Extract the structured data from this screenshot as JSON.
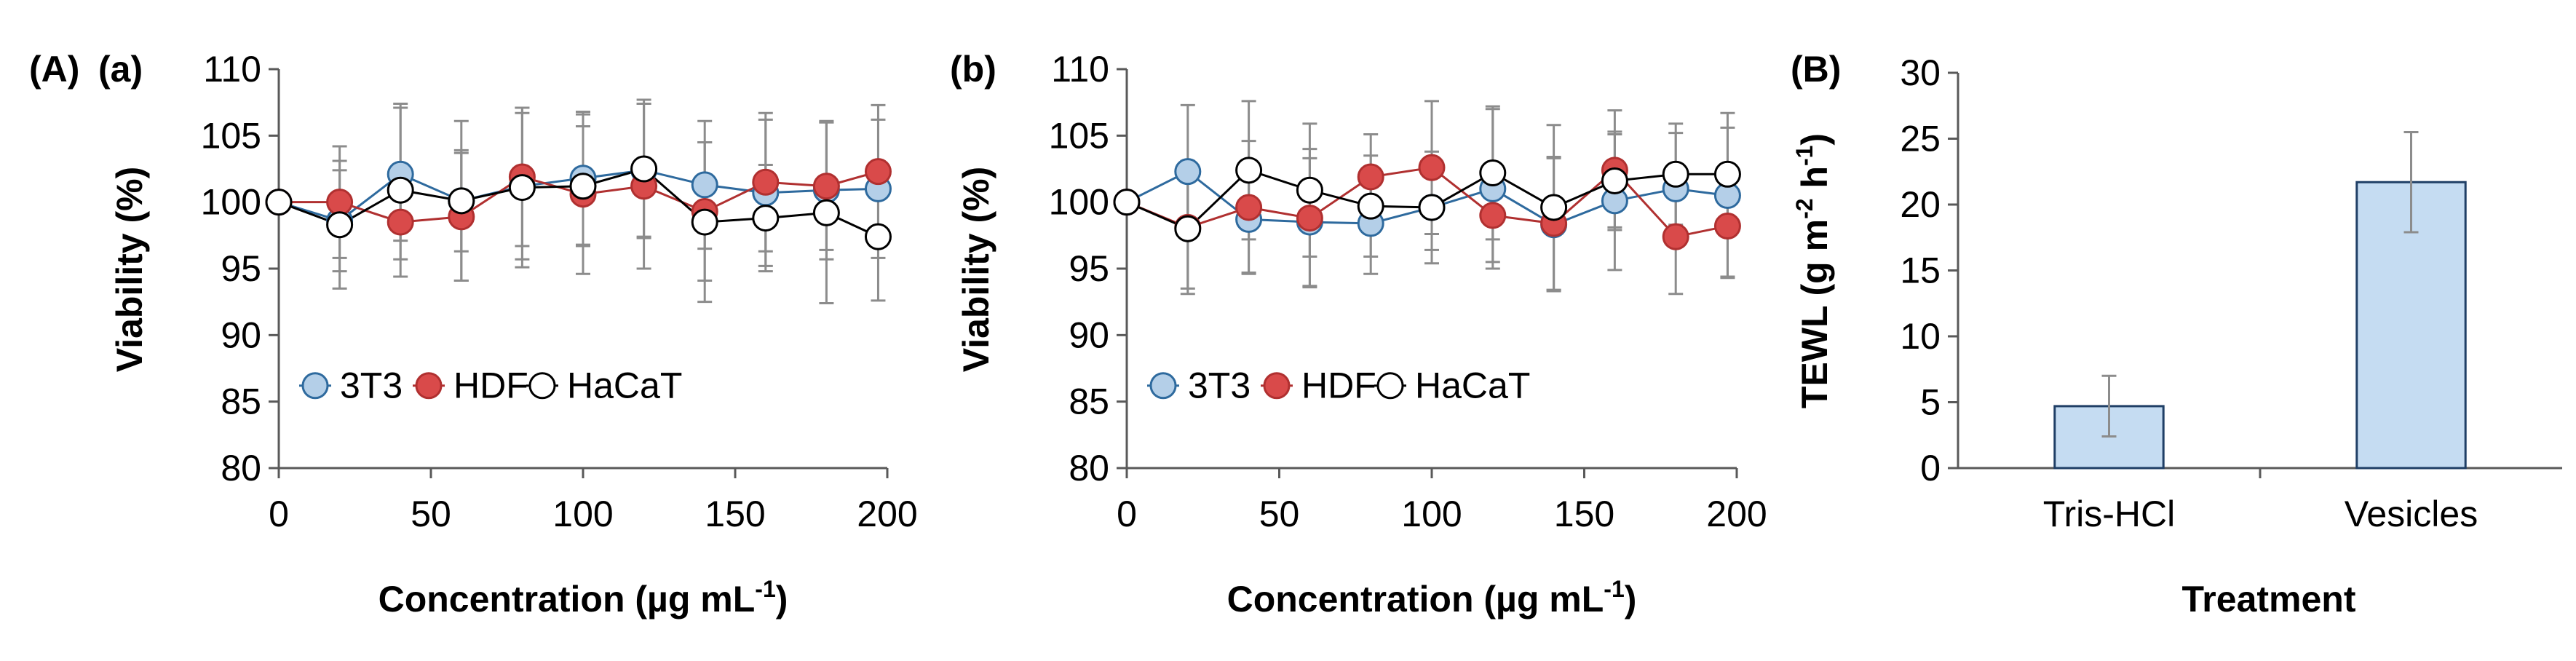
{
  "panel_labels": {
    "A": "(A)",
    "a": "(a)",
    "b": "(b)",
    "B": "(B)"
  },
  "chart_data": [
    {
      "panel": "(a)",
      "type": "line",
      "xlabel": "Concentration (µg mL⁻¹)",
      "xlabel_main": "Concentration (µg mL",
      "xlabel_sup": "-1",
      "xlabel_close": ")",
      "ylabel": "Viability (%)",
      "xlim": [
        0,
        200
      ],
      "ylim": [
        80,
        110
      ],
      "x_ticks": [
        "0",
        "50",
        "100",
        "150",
        "200"
      ],
      "y_ticks": [
        "80",
        "85",
        "90",
        "95",
        "100",
        "105",
        "110"
      ],
      "x_tick_values": [
        0,
        50,
        100,
        150,
        200
      ],
      "y_tick_values": [
        80,
        85,
        90,
        95,
        100,
        105,
        110
      ],
      "legend_position": "bottom",
      "grid": false,
      "x": [
        0,
        20,
        40,
        60,
        80,
        100,
        120,
        140,
        160,
        180,
        197
      ],
      "series": [
        {
          "name": "3T3",
          "color": "#b4cfe8",
          "edge": "#2e6a9e",
          "values": [
            100,
            98.6,
            102.1,
            100.1,
            101.2,
            101.8,
            102.4,
            101.3,
            100.7,
            100.9,
            101.0
          ],
          "errors": [
            0,
            3.8,
            5.0,
            3.8,
            5.5,
            5.0,
            5.0,
            4.8,
            5.5,
            5.2,
            5.2
          ]
        },
        {
          "name": "HDF",
          "color": "#d94a4a",
          "edge": "#b03030",
          "values": [
            100,
            100.0,
            98.5,
            98.9,
            101.9,
            100.6,
            101.2,
            99.3,
            101.5,
            101.2,
            102.3
          ],
          "errors": [
            0,
            4.2,
            2.8,
            4.8,
            5.2,
            6.0,
            6.2,
            5.2,
            5.2,
            4.8,
            5.0
          ]
        },
        {
          "name": "HaCaT",
          "color": "#ffffff",
          "edge": "#000000",
          "values": [
            100,
            98.3,
            100.9,
            100.1,
            101.1,
            101.2,
            102.5,
            98.5,
            98.8,
            99.2,
            97.4
          ],
          "errors": [
            0,
            4.8,
            6.5,
            6.0,
            6.0,
            4.5,
            5.2,
            6.0,
            4.0,
            6.8,
            4.8
          ]
        }
      ]
    },
    {
      "panel": "(b)",
      "type": "line",
      "xlabel": "Concentration (µg mL⁻¹)",
      "xlabel_main": "Concentration (µg mL",
      "xlabel_sup": "-1",
      "xlabel_close": ")",
      "ylabel": "Viability (%)",
      "xlim": [
        0,
        200
      ],
      "ylim": [
        80,
        110
      ],
      "x_ticks": [
        "0",
        "50",
        "100",
        "150",
        "200"
      ],
      "y_ticks": [
        "80",
        "85",
        "90",
        "95",
        "100",
        "105",
        "110"
      ],
      "x_tick_values": [
        0,
        50,
        100,
        150,
        200
      ],
      "y_tick_values": [
        80,
        85,
        90,
        95,
        100,
        105,
        110
      ],
      "legend_position": "bottom",
      "grid": false,
      "x": [
        0,
        20,
        40,
        60,
        80,
        100,
        120,
        140,
        160,
        180,
        197
      ],
      "series": [
        {
          "name": "3T3",
          "color": "#b4cfe8",
          "edge": "#2e6a9e",
          "values": [
            100,
            102.3,
            98.7,
            98.5,
            98.4,
            99.6,
            101.0,
            98.3,
            100.1,
            101.0,
            100.5
          ],
          "errors": [
            0,
            5.0,
            4.0,
            4.8,
            3.8,
            3.2,
            6.0,
            5.0,
            5.2,
            4.2,
            6.2
          ]
        },
        {
          "name": "HDF",
          "color": "#d94a4a",
          "edge": "#b03030",
          "values": [
            100,
            98.1,
            99.6,
            98.8,
            101.9,
            102.6,
            99.0,
            98.4,
            102.4,
            97.4,
            98.2
          ],
          "errors": [
            0,
            5.0,
            5.0,
            5.2,
            3.2,
            5.0,
            3.5,
            5.0,
            4.5,
            4.3,
            3.8
          ]
        },
        {
          "name": "HaCaT",
          "color": "#ffffff",
          "edge": "#000000",
          "values": [
            100,
            98.0,
            102.4,
            100.9,
            99.7,
            99.6,
            102.2,
            99.6,
            101.6,
            102.1,
            102.1
          ],
          "errors": [
            0,
            4.5,
            5.2,
            5.0,
            3.8,
            4.2,
            5.0,
            6.2,
            3.5,
            3.8,
            3.5
          ]
        }
      ]
    },
    {
      "panel": "(B)",
      "type": "bar",
      "xlabel": "Treatment",
      "ylabel": "TEWL (g m⁻² h⁻¹)",
      "ylabel_parts": [
        "TEWL (g m",
        "-2",
        " h",
        "-1",
        ")"
      ],
      "ylim": [
        0,
        30
      ],
      "y_ticks": [
        "0",
        "5",
        "10",
        "15",
        "20",
        "25",
        "30"
      ],
      "y_tick_values": [
        0,
        5,
        10,
        15,
        20,
        25,
        30
      ],
      "categories": [
        "Tris-HCl",
        "Vesicles"
      ],
      "values": [
        4.7,
        21.7
      ],
      "errors": [
        2.3,
        3.8
      ],
      "bar_color": "#c5dcf2",
      "bar_edge": "#1f3f66",
      "grid": false
    }
  ]
}
